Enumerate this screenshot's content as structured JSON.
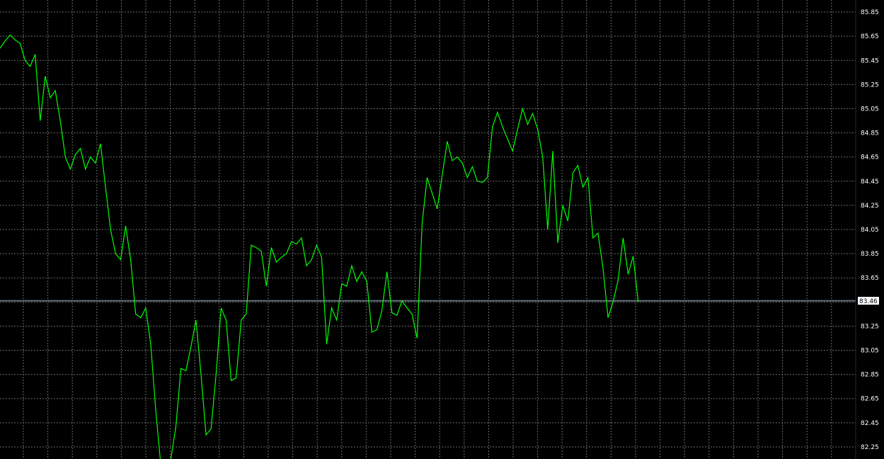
{
  "chart_data": {
    "type": "line",
    "title": "",
    "xlabel": "",
    "ylabel": "",
    "ylim": [
      82.15,
      85.95
    ],
    "y_ticks": [
      "85.85",
      "85.65",
      "85.45",
      "85.25",
      "85.05",
      "84.85",
      "84.65",
      "84.45",
      "84.25",
      "84.05",
      "83.85",
      "83.65",
      "83.45",
      "83.25",
      "83.05",
      "82.85",
      "82.65",
      "82.45",
      "82.25"
    ],
    "grid": true,
    "grid_style": "dotted",
    "series": [
      {
        "color": "#00ff00",
        "values": [
          85.55,
          85.61,
          85.66,
          85.62,
          85.59,
          85.45,
          85.4,
          85.5,
          84.95,
          85.32,
          85.14,
          85.2,
          84.95,
          84.65,
          84.55,
          84.67,
          84.72,
          84.55,
          84.65,
          84.6,
          84.76,
          84.4,
          84.05,
          83.85,
          83.8,
          84.08,
          83.8,
          83.35,
          83.32,
          83.4,
          83.1,
          82.55,
          82.1,
          82.05,
          82.15,
          82.42,
          82.9,
          82.88,
          83.08,
          83.3,
          82.85,
          82.35,
          82.4,
          82.85,
          83.4,
          83.3,
          82.8,
          82.82,
          83.3,
          83.35,
          83.92,
          83.9,
          83.87,
          83.58,
          83.9,
          83.78,
          83.82,
          83.85,
          83.95,
          83.93,
          83.98,
          83.75,
          83.8,
          83.92,
          83.82,
          83.1,
          83.4,
          83.3,
          83.6,
          83.58,
          83.75,
          83.62,
          83.7,
          83.62,
          83.2,
          83.22,
          83.38,
          83.7,
          83.36,
          83.34,
          83.46,
          83.4,
          83.35,
          83.15,
          84.1,
          84.48,
          84.35,
          84.22,
          84.5,
          84.78,
          84.62,
          84.65,
          84.6,
          84.48,
          84.57,
          84.45,
          84.44,
          84.48,
          84.9,
          85.02,
          84.9,
          84.8,
          84.7,
          84.88,
          85.05,
          84.92,
          85.01,
          84.88,
          84.65,
          84.05,
          84.7,
          83.94,
          84.25,
          84.12,
          84.52,
          84.58,
          84.4,
          84.48,
          83.98,
          84.02,
          83.73,
          83.32,
          83.45,
          83.63,
          83.98,
          83.68,
          83.83,
          83.45
        ]
      }
    ],
    "current_price_line": 83.46,
    "current_price_label": "83.46",
    "price_tag_color": "#ffffff",
    "price_line_color": "#5f6e7a",
    "grid_color": "#6b6b6b",
    "line_color": "#00ff00",
    "background_color": "#000000"
  }
}
